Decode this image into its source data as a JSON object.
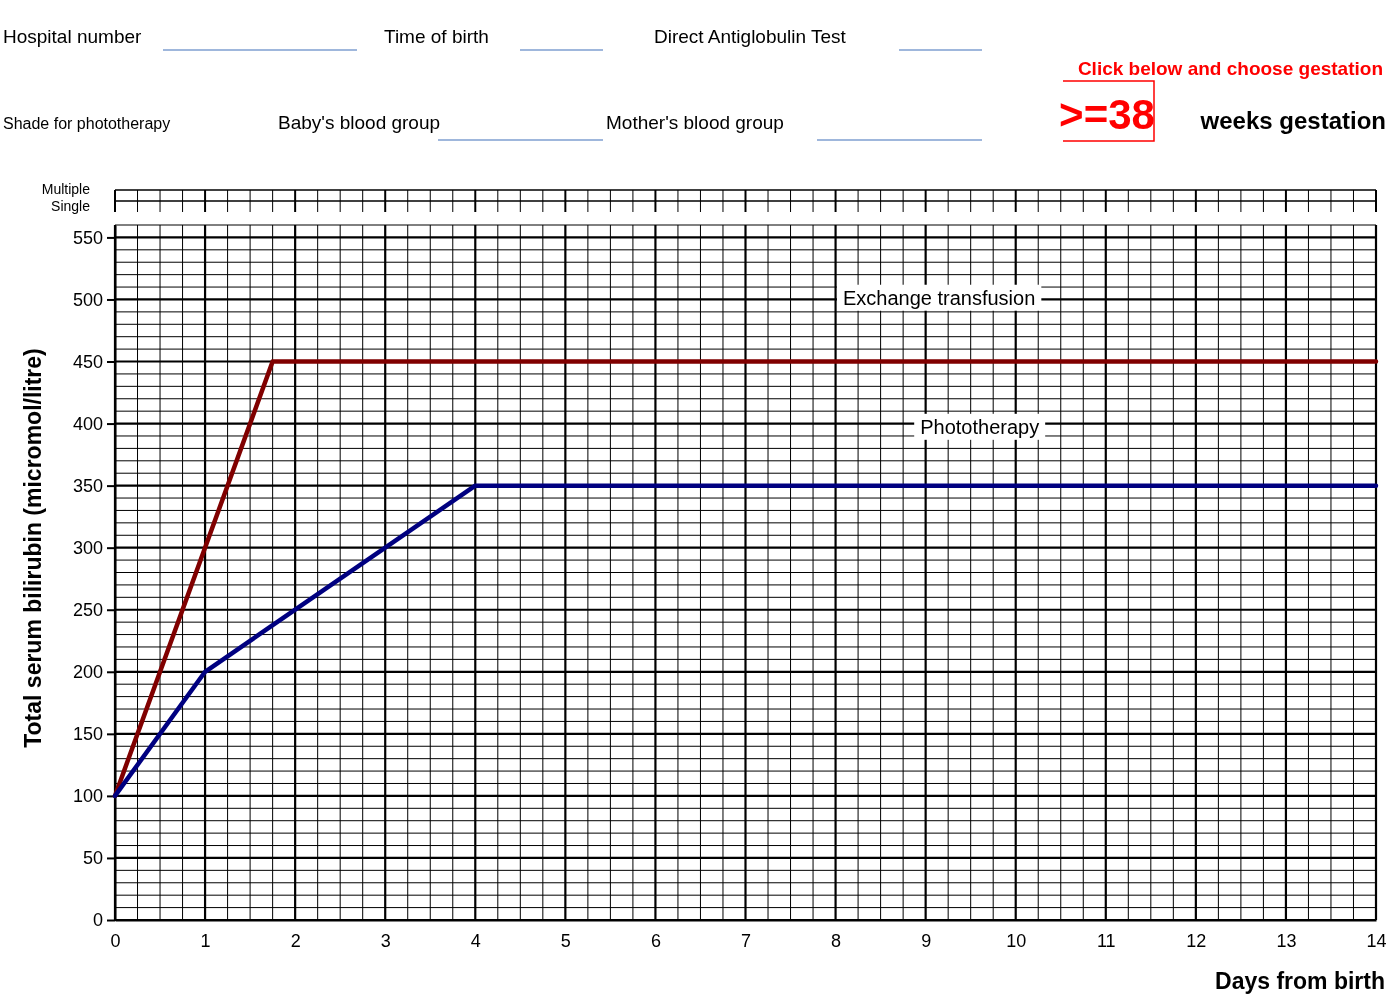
{
  "chart_data": {
    "type": "line",
    "xlabel": "Days from birth",
    "ylabel": "Total serum bilirubin  (micromol/litre)",
    "series": [
      {
        "name": "Exchange transfusion",
        "color": "#800000",
        "x": [
          0,
          1.75,
          14
        ],
        "values": [
          100,
          450,
          450
        ]
      },
      {
        "name": "Phototherapy",
        "color": "#000080",
        "x": [
          0,
          1,
          4,
          14
        ],
        "values": [
          100,
          200,
          350,
          350
        ]
      }
    ],
    "xlim": [
      0,
      14
    ],
    "ylim": [
      0,
      560
    ],
    "xticks": [
      0,
      {
        "value": 0.25,
        "label": null
      },
      {
        "value": 0.5,
        "label": null
      },
      {
        "value": 0.75,
        "label": null
      },
      1,
      {
        "value": 1.25,
        "label": null
      },
      {
        "value": 1.5,
        "label": null
      },
      {
        "value": 1.75,
        "label": null
      },
      2,
      {
        "value": 2.25,
        "label": null
      },
      {
        "value": 2.5,
        "label": null
      },
      {
        "value": 2.75,
        "label": null
      },
      3,
      {
        "value": 3.25,
        "label": null
      },
      {
        "value": 3.5,
        "label": null
      },
      {
        "value": 3.75,
        "label": null
      },
      4,
      {
        "value": 4.25,
        "label": null
      },
      {
        "value": 4.5,
        "label": null
      },
      {
        "value": 4.75,
        "label": null
      },
      5,
      {
        "value": 5.25,
        "label": null
      },
      {
        "value": 5.5,
        "label": null
      },
      {
        "value": 5.75,
        "label": null
      },
      6,
      {
        "value": 6.25,
        "label": null
      },
      {
        "value": 6.5,
        "label": null
      },
      {
        "value": 6.75,
        "label": null
      },
      7,
      {
        "value": 7.25,
        "label": null
      },
      {
        "value": 7.5,
        "label": null
      },
      {
        "value": 7.75,
        "label": null
      },
      8,
      {
        "value": 8.25,
        "label": null
      },
      {
        "value": 8.5,
        "label": null
      },
      {
        "value": 8.75,
        "label": null
      },
      9,
      {
        "value": 9.25,
        "label": null
      },
      {
        "value": 9.5,
        "label": null
      },
      {
        "value": 9.75,
        "label": null
      },
      10,
      {
        "value": 10.25,
        "label": null
      },
      {
        "value": 10.5,
        "label": null
      },
      {
        "value": 10.75,
        "label": null
      },
      11,
      {
        "value": 11.25,
        "label": null
      },
      {
        "value": 11.5,
        "label": null
      },
      {
        "value": 11.75,
        "label": null
      },
      12,
      {
        "value": 12.25,
        "label": null
      },
      {
        "value": 12.5,
        "label": null
      },
      {
        "value": 12.75,
        "label": null
      },
      13,
      {
        "value": 13.25,
        "label": null
      },
      {
        "value": 13.5,
        "label": null
      },
      {
        "value": 13.75,
        "label": null
      },
      14
    ],
    "yticks": [
      0,
      {
        "value": 10,
        "label": null
      },
      {
        "value": 20,
        "label": null
      },
      {
        "value": 30,
        "label": null
      },
      {
        "value": 40,
        "label": null
      },
      50,
      {
        "value": 60,
        "label": null
      },
      {
        "value": 70,
        "label": null
      },
      {
        "value": 80,
        "label": null
      },
      {
        "value": 90,
        "label": null
      },
      100,
      {
        "value": 110,
        "label": null
      },
      {
        "value": 120,
        "label": null
      },
      {
        "value": 130,
        "label": null
      },
      {
        "value": 140,
        "label": null
      },
      150,
      {
        "value": 160,
        "label": null
      },
      {
        "value": 170,
        "label": null
      },
      {
        "value": 180,
        "label": null
      },
      {
        "value": 190,
        "label": null
      },
      200,
      {
        "value": 210,
        "label": null
      },
      {
        "value": 220,
        "label": null
      },
      {
        "value": 230,
        "label": null
      },
      {
        "value": 240,
        "label": null
      },
      250,
      {
        "value": 260,
        "label": null
      },
      {
        "value": 270,
        "label": null
      },
      {
        "value": 280,
        "label": null
      },
      {
        "value": 290,
        "label": null
      },
      300,
      {
        "value": 310,
        "label": null
      },
      {
        "value": 320,
        "label": null
      },
      {
        "value": 330,
        "label": null
      },
      {
        "value": 340,
        "label": null
      },
      350,
      {
        "value": 360,
        "label": null
      },
      {
        "value": 370,
        "label": null
      },
      {
        "value": 380,
        "label": null
      },
      {
        "value": 390,
        "label": null
      },
      400,
      {
        "value": 410,
        "label": null
      },
      {
        "value": 420,
        "label": null
      },
      {
        "value": 430,
        "label": null
      },
      {
        "value": 440,
        "label": null
      },
      450,
      {
        "value": 460,
        "label": null
      },
      {
        "value": 470,
        "label": null
      },
      {
        "value": 480,
        "label": null
      },
      {
        "value": 490,
        "label": null
      },
      500,
      {
        "value": 510,
        "label": null
      },
      {
        "value": 520,
        "label": null
      },
      {
        "value": 530,
        "label": null
      },
      {
        "value": 540,
        "label": null
      },
      550,
      {
        "value": 560,
        "label": null
      }
    ],
    "grid": true,
    "legend": false,
    "marker": "none",
    "line_style": "solid",
    "annotations": [
      "Hospital number",
      "Time of birth",
      "Direct Antiglobulin Test",
      "Shade for phototherapy",
      "Baby's blood group",
      "Mother's blood group",
      "Click below and choose gestation",
      ">=38",
      "weeks gestation",
      "Multiple",
      "Single"
    ]
  }
}
